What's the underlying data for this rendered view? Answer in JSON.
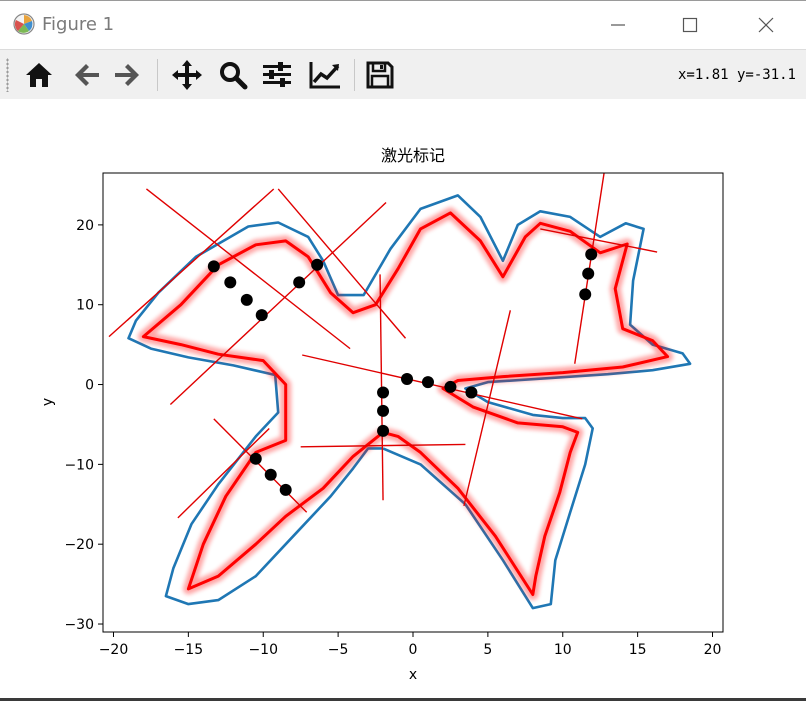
{
  "window": {
    "title": "Figure 1",
    "icon": "matplotlib-icon"
  },
  "window_controls": [
    "minimize-icon",
    "maximize-icon",
    "close-icon"
  ],
  "toolbar": {
    "buttons": [
      "home-icon",
      "back-arrow-icon",
      "forward-arrow-icon",
      "pan-icon",
      "zoom-icon",
      "subplots-config-icon",
      "edit-curves-icon",
      "save-icon"
    ],
    "coords": "x=1.81 y=-31.1"
  },
  "colors": {
    "blue_curve": "#1f77b4",
    "red_path": "#ff0000",
    "points": "#000000",
    "lines": "#e00000"
  },
  "chart_data": {
    "type": "line",
    "title": "激光标记",
    "xlabel": "x",
    "ylabel": "y",
    "xlim": [
      -20.7,
      20.7
    ],
    "ylim": [
      -31,
      26.5
    ],
    "xticks": [
      -20,
      -15,
      -10,
      -5,
      0,
      5,
      10,
      15,
      20
    ],
    "yticks": [
      -30,
      -20,
      -10,
      0,
      10,
      20
    ],
    "grid": false,
    "legend": "none",
    "blue_curve": [
      [
        -2,
        -8
      ],
      [
        0.5,
        -10
      ],
      [
        3.5,
        -15
      ],
      [
        6,
        -22
      ],
      [
        8,
        -28
      ],
      [
        9.2,
        -27.5
      ],
      [
        9.5,
        -22
      ],
      [
        10.5,
        -16
      ],
      [
        11.5,
        -10
      ],
      [
        12,
        -5.5
      ],
      [
        11.5,
        -4.2
      ],
      [
        10,
        -4.2
      ],
      [
        8,
        -3.8
      ],
      [
        5,
        -2.2
      ],
      [
        3.5,
        -0.5
      ],
      [
        5,
        0.3
      ],
      [
        9,
        0.8
      ],
      [
        13,
        1.3
      ],
      [
        16,
        1.8
      ],
      [
        18.5,
        2.6
      ],
      [
        18,
        3.9
      ],
      [
        16,
        5
      ],
      [
        14.5,
        7.5
      ],
      [
        14.7,
        13
      ],
      [
        15.4,
        19.5
      ],
      [
        14.2,
        20.2
      ],
      [
        12.5,
        18.5
      ],
      [
        10.5,
        21
      ],
      [
        8.5,
        21.7
      ],
      [
        7,
        20
      ],
      [
        6,
        15.5
      ],
      [
        4.5,
        21
      ],
      [
        3,
        23.7
      ],
      [
        0.5,
        22
      ],
      [
        -1.5,
        17
      ],
      [
        -3.3,
        11.2
      ],
      [
        -5,
        11.2
      ],
      [
        -6,
        15.5
      ],
      [
        -7,
        18.5
      ],
      [
        -9,
        20.3
      ],
      [
        -11,
        19.8
      ],
      [
        -14.5,
        16
      ],
      [
        -17,
        11.5
      ],
      [
        -18.5,
        8
      ],
      [
        -19,
        5.8
      ],
      [
        -17.5,
        4.5
      ],
      [
        -15,
        3.4
      ],
      [
        -12,
        2.4
      ],
      [
        -9.2,
        1.2
      ],
      [
        -9,
        -3.5
      ],
      [
        -10.5,
        -6.5
      ],
      [
        -13,
        -12.5
      ],
      [
        -14.8,
        -17.5
      ],
      [
        -16,
        -23
      ],
      [
        -16.5,
        -26.5
      ],
      [
        -15,
        -27.5
      ],
      [
        -13,
        -27
      ],
      [
        -10.5,
        -24
      ],
      [
        -8,
        -19
      ],
      [
        -5.5,
        -14
      ],
      [
        -4,
        -10.5
      ],
      [
        -3,
        -8
      ],
      [
        -2,
        -8
      ]
    ],
    "red_path": [
      [
        -2,
        -6
      ],
      [
        -1,
        -6.5
      ],
      [
        0.5,
        -8.5
      ],
      [
        3,
        -13
      ],
      [
        5.5,
        -19
      ],
      [
        8,
        -26.3
      ],
      [
        8.2,
        -24
      ],
      [
        8.8,
        -19
      ],
      [
        9.8,
        -13.5
      ],
      [
        10.5,
        -8.5
      ],
      [
        11,
        -6
      ],
      [
        10,
        -5.3
      ],
      [
        7,
        -4.8
      ],
      [
        4,
        -2.8
      ],
      [
        2,
        -0.5
      ],
      [
        3,
        0.5
      ],
      [
        6,
        1
      ],
      [
        10,
        1.5
      ],
      [
        14,
        2.2
      ],
      [
        17,
        3.5
      ],
      [
        16,
        5.5
      ],
      [
        14,
        7
      ],
      [
        13.5,
        12
      ],
      [
        14.3,
        17.6
      ],
      [
        12.5,
        16.5
      ],
      [
        10.5,
        19.2
      ],
      [
        8.5,
        20.2
      ],
      [
        7.5,
        18.5
      ],
      [
        6,
        13.5
      ],
      [
        4.5,
        18
      ],
      [
        2.5,
        21.5
      ],
      [
        0.5,
        19.5
      ],
      [
        -1,
        14.5
      ],
      [
        -2.5,
        10
      ],
      [
        -4,
        9
      ],
      [
        -5.5,
        11.5
      ],
      [
        -7,
        16
      ],
      [
        -8.5,
        18
      ],
      [
        -10.5,
        17.5
      ],
      [
        -13,
        15
      ],
      [
        -15.5,
        10
      ],
      [
        -18,
        6
      ],
      [
        -15.5,
        5
      ],
      [
        -13,
        3.8
      ],
      [
        -10,
        3
      ],
      [
        -8.5,
        0
      ],
      [
        -8.5,
        -7
      ],
      [
        -10.5,
        -8.5
      ],
      [
        -12.5,
        -14
      ],
      [
        -14,
        -20
      ],
      [
        -15,
        -25.6
      ],
      [
        -13,
        -24
      ],
      [
        -10.5,
        -20
      ],
      [
        -8.5,
        -16.5
      ],
      [
        -6,
        -13
      ],
      [
        -4,
        -9
      ],
      [
        -2,
        -6
      ]
    ],
    "marker_points": [
      [
        -13.3,
        14.8
      ],
      [
        -12.2,
        12.8
      ],
      [
        -11.1,
        10.6
      ],
      [
        -10.1,
        8.7
      ],
      [
        -6.4,
        15
      ],
      [
        -7.6,
        12.8
      ],
      [
        -2,
        -1
      ],
      [
        -2,
        -3.3
      ],
      [
        -2,
        -5.8
      ],
      [
        -0.4,
        0.7
      ],
      [
        1,
        0.3
      ],
      [
        2.5,
        -0.3
      ],
      [
        3.9,
        -1
      ],
      [
        11.9,
        16.3
      ],
      [
        11.7,
        13.9
      ],
      [
        11.5,
        11.3
      ],
      [
        -10.5,
        -9.3
      ],
      [
        -9.5,
        -11.3
      ],
      [
        -8.5,
        -13.2
      ]
    ],
    "marker_lines": [
      [
        [
          -17.8,
          24.5
        ],
        [
          -4.2,
          4.5
        ]
      ],
      [
        [
          -20.3,
          6
        ],
        [
          -9.3,
          24.5
        ]
      ],
      [
        [
          -16.2,
          -2.5
        ],
        [
          -1.8,
          22.8
        ]
      ],
      [
        [
          -9,
          24.5
        ],
        [
          -0.5,
          5.8
        ]
      ],
      [
        [
          -2.2,
          13.8
        ],
        [
          -2,
          -14.5
        ]
      ],
      [
        [
          -7.4,
          3.7
        ],
        [
          11.3,
          -4.3
        ]
      ],
      [
        [
          -7.5,
          -7.8
        ],
        [
          3.5,
          -7.5
        ]
      ],
      [
        [
          3.4,
          -15.2
        ],
        [
          6.5,
          9.3
        ]
      ],
      [
        [
          10.8,
          2.6
        ],
        [
          12.8,
          27
        ]
      ],
      [
        [
          8.5,
          19.5
        ],
        [
          16.3,
          16.6
        ]
      ],
      [
        [
          -13.3,
          -4.3
        ],
        [
          -7.1,
          -16
        ]
      ],
      [
        [
          -15.7,
          -16.7
        ],
        [
          -9.6,
          -5.5
        ]
      ]
    ]
  }
}
